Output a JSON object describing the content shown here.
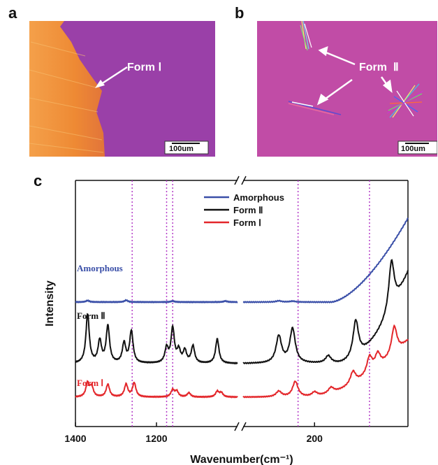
{
  "panels": {
    "a": {
      "letter": "a",
      "annotation": "Form Ⅰ",
      "scale_bar": "100um"
    },
    "b": {
      "letter": "b",
      "annotation": "Form  Ⅱ",
      "scale_bar": "100um"
    },
    "c": {
      "letter": "c"
    }
  },
  "colors": {
    "amorphous": "#3a4fa8",
    "form2": "#111111",
    "form1": "#e3262a",
    "marker_lines": "#b43cc8",
    "micrograph_a_crystal": "#f08a3a",
    "micrograph_a_background": "#9a3fa8",
    "micrograph_b_background": "#c04aa6"
  },
  "chart_data": {
    "type": "line",
    "xlabel": "Wavenumber(cm⁻¹)",
    "ylabel": "Intensity",
    "axis_break": true,
    "left_segment": {
      "xlim": [
        1400,
        1000
      ],
      "ticks": [
        1400,
        1200
      ]
    },
    "right_segment": {
      "xlim": [
        330,
        30
      ],
      "ticks": [
        200
      ]
    },
    "legend": {
      "placement": "top-center",
      "entries": [
        "Amorphous",
        "Form Ⅱ",
        "Form Ⅰ"
      ]
    },
    "series_labels": [
      "Amorphous",
      "Form Ⅱ",
      "Form Ⅰ"
    ],
    "marker_lines_wavenumber": [
      1260,
      1175,
      1160,
      230,
      100
    ],
    "series": [
      {
        "name": "Amorphous",
        "peaks_left": [
          [
            1370,
            0.1
          ],
          [
            1275,
            0.12
          ],
          [
            1160,
            0.07
          ],
          [
            1030,
            0.07
          ]
        ],
        "peaks_right": [
          [
            265,
            0.08
          ],
          [
            240,
            0.06
          ]
        ],
        "rise_right": "smooth increase from ~150 cm-1 to 30 cm-1"
      },
      {
        "name": "Form Ⅱ",
        "peaks_left": [
          [
            1370,
            1.0
          ],
          [
            1340,
            0.45
          ],
          [
            1320,
            0.75
          ],
          [
            1280,
            0.4
          ],
          [
            1262,
            0.65
          ],
          [
            1175,
            0.3
          ],
          [
            1160,
            0.7
          ],
          [
            1145,
            0.25
          ],
          [
            1130,
            0.25
          ],
          [
            1110,
            0.35
          ],
          [
            1050,
            0.5
          ]
        ],
        "peaks_right": [
          [
            265,
            0.55
          ],
          [
            240,
            0.7
          ],
          [
            175,
            0.15
          ],
          [
            125,
            0.75
          ],
          [
            60,
            1.0
          ]
        ],
        "rise_right": "strong increase below ~150 cm-1"
      },
      {
        "name": "Form Ⅰ",
        "peaks_left": [
          [
            1370,
            0.5
          ],
          [
            1360,
            0.35
          ],
          [
            1320,
            0.45
          ],
          [
            1275,
            0.45
          ],
          [
            1255,
            0.5
          ],
          [
            1160,
            0.25
          ],
          [
            1150,
            0.2
          ],
          [
            1120,
            0.15
          ],
          [
            1050,
            0.2
          ],
          [
            1040,
            0.15
          ]
        ],
        "peaks_right": [
          [
            265,
            0.2
          ],
          [
            235,
            0.55
          ],
          [
            200,
            0.15
          ],
          [
            170,
            0.2
          ],
          [
            130,
            0.45
          ],
          [
            100,
            0.6
          ],
          [
            85,
            0.5
          ],
          [
            55,
            1.0
          ]
        ],
        "rise_right": "increase below ~200 cm-1"
      }
    ]
  }
}
